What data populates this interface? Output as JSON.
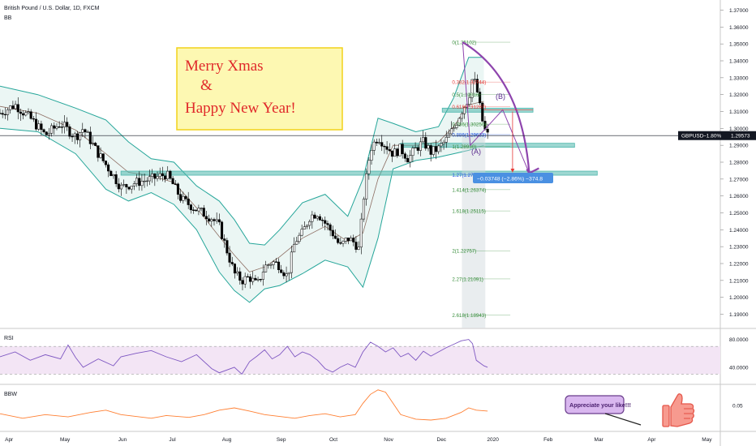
{
  "header": {
    "symbol_line": "British Pound / U.S. Dollar, 1D, FXCM",
    "indicator_bb": "BB"
  },
  "annotations": {
    "greeting_line1": "Merry Xmas",
    "greeting_amp": "&",
    "greeting_line2": "Happy New Year!",
    "wave_a": "(A)",
    "wave_b": "(B)",
    "measure_label": "−0.03748 (−2.86%) −374.8",
    "appreciate": "Appreciate your like!!!"
  },
  "price_tag": {
    "label": "GBPUSD",
    "change": "−1.80%",
    "value": "1.29573",
    "color": "#131722"
  },
  "colors": {
    "up": "#26a69a",
    "down": "#ef5350",
    "candle": "#000000",
    "bb_band": "#26a69a",
    "bb_fill": "#e6f4f1",
    "bb_basis": "#8d6e63",
    "rsi": "#7e57c2",
    "rsi_band": "#f3e5f5",
    "bbw": "#ff7f32",
    "fib": "#388e3c",
    "fib_red": "#e53935",
    "fib_blue": "#1e53e5",
    "zone": "#4db6ac",
    "arrow": "#8e44ad",
    "measure": "#4a90e2"
  },
  "chart_data": {
    "type": "candlestick",
    "y_axis": {
      "range": [
        1.184,
        1.376
      ],
      "ticks": [
        "1.37000",
        "1.36000",
        "1.35000",
        "1.34000",
        "1.33000",
        "1.32000",
        "1.31000",
        "1.30000",
        "1.29000",
        "1.28000",
        "1.27000",
        "1.26000",
        "1.25000",
        "1.24000",
        "1.23000",
        "1.22000",
        "1.21000",
        "1.20000",
        "1.19000"
      ]
    },
    "x_axis": {
      "ticks": [
        {
          "label": "Apr",
          "t": 0.012
        },
        {
          "label": "May",
          "t": 0.086
        },
        {
          "label": "Jun",
          "t": 0.162
        },
        {
          "label": "Jul",
          "t": 0.228
        },
        {
          "label": "Aug",
          "t": 0.3
        },
        {
          "label": "Sep",
          "t": 0.372
        },
        {
          "label": "Oct",
          "t": 0.441
        },
        {
          "label": "Nov",
          "t": 0.514
        },
        {
          "label": "Dec",
          "t": 0.584
        },
        {
          "label": "2020",
          "t": 0.652
        },
        {
          "label": "Feb",
          "t": 0.725
        },
        {
          "label": "Mar",
          "t": 0.792
        },
        {
          "label": "Apr",
          "t": 0.862
        },
        {
          "label": "May",
          "t": 0.935
        }
      ]
    },
    "close_path": [
      [
        0.0,
        1.309
      ],
      [
        0.02,
        1.314
      ],
      [
        0.04,
        1.306
      ],
      [
        0.06,
        1.296
      ],
      [
        0.08,
        1.303
      ],
      [
        0.1,
        1.295
      ],
      [
        0.11,
        1.3
      ],
      [
        0.13,
        1.285
      ],
      [
        0.15,
        1.272
      ],
      [
        0.16,
        1.265
      ],
      [
        0.18,
        1.268
      ],
      [
        0.2,
        1.27
      ],
      [
        0.22,
        1.273
      ],
      [
        0.23,
        1.266
      ],
      [
        0.24,
        1.258
      ],
      [
        0.26,
        1.252
      ],
      [
        0.28,
        1.247
      ],
      [
        0.29,
        1.242
      ],
      [
        0.3,
        1.228
      ],
      [
        0.31,
        1.214
      ],
      [
        0.32,
        1.21
      ],
      [
        0.33,
        1.212
      ],
      [
        0.34,
        1.207
      ],
      [
        0.35,
        1.218
      ],
      [
        0.36,
        1.221
      ],
      [
        0.37,
        1.219
      ],
      [
        0.38,
        1.212
      ],
      [
        0.39,
        1.233
      ],
      [
        0.4,
        1.238
      ],
      [
        0.41,
        1.248
      ],
      [
        0.42,
        1.25
      ],
      [
        0.43,
        1.244
      ],
      [
        0.44,
        1.238
      ],
      [
        0.45,
        1.23
      ],
      [
        0.46,
        1.235
      ],
      [
        0.47,
        1.232
      ],
      [
        0.475,
        1.228
      ],
      [
        0.48,
        1.256
      ],
      [
        0.49,
        1.288
      ],
      [
        0.5,
        1.295
      ],
      [
        0.51,
        1.29
      ],
      [
        0.52,
        1.285
      ],
      [
        0.53,
        1.288
      ],
      [
        0.54,
        1.282
      ],
      [
        0.55,
        1.288
      ],
      [
        0.56,
        1.292
      ],
      [
        0.57,
        1.286
      ],
      [
        0.58,
        1.288
      ],
      [
        0.59,
        1.293
      ],
      [
        0.6,
        1.3
      ],
      [
        0.61,
        1.31
      ],
      [
        0.62,
        1.318
      ],
      [
        0.625,
        1.33
      ],
      [
        0.63,
        1.325
      ],
      [
        0.635,
        1.312
      ],
      [
        0.64,
        1.3
      ],
      [
        0.645,
        1.296
      ]
    ],
    "bb_upper": [
      [
        0.0,
        1.325
      ],
      [
        0.05,
        1.32
      ],
      [
        0.1,
        1.312
      ],
      [
        0.14,
        1.305
      ],
      [
        0.17,
        1.292
      ],
      [
        0.2,
        1.282
      ],
      [
        0.23,
        1.28
      ],
      [
        0.26,
        1.266
      ],
      [
        0.29,
        1.257
      ],
      [
        0.31,
        1.246
      ],
      [
        0.33,
        1.232
      ],
      [
        0.35,
        1.231
      ],
      [
        0.37,
        1.24
      ],
      [
        0.4,
        1.256
      ],
      [
        0.43,
        1.261
      ],
      [
        0.46,
        1.248
      ],
      [
        0.48,
        1.27
      ],
      [
        0.5,
        1.306
      ],
      [
        0.52,
        1.303
      ],
      [
        0.55,
        1.298
      ],
      [
        0.58,
        1.301
      ],
      [
        0.6,
        1.318
      ],
      [
        0.62,
        1.342
      ],
      [
        0.64,
        1.342
      ]
    ],
    "bb_lower": [
      [
        0.0,
        1.3
      ],
      [
        0.05,
        1.298
      ],
      [
        0.1,
        1.285
      ],
      [
        0.14,
        1.264
      ],
      [
        0.17,
        1.257
      ],
      [
        0.2,
        1.262
      ],
      [
        0.23,
        1.255
      ],
      [
        0.26,
        1.24
      ],
      [
        0.29,
        1.215
      ],
      [
        0.31,
        1.204
      ],
      [
        0.33,
        1.197
      ],
      [
        0.35,
        1.205
      ],
      [
        0.37,
        1.207
      ],
      [
        0.4,
        1.214
      ],
      [
        0.43,
        1.222
      ],
      [
        0.46,
        1.218
      ],
      [
        0.48,
        1.206
      ],
      [
        0.5,
        1.235
      ],
      [
        0.52,
        1.276
      ],
      [
        0.55,
        1.281
      ],
      [
        0.58,
        1.283
      ],
      [
        0.6,
        1.285
      ],
      [
        0.62,
        1.287
      ],
      [
        0.64,
        1.29
      ]
    ],
    "bb_basis": [
      [
        0.0,
        1.313
      ],
      [
        0.05,
        1.309
      ],
      [
        0.1,
        1.299
      ],
      [
        0.14,
        1.285
      ],
      [
        0.17,
        1.274
      ],
      [
        0.2,
        1.272
      ],
      [
        0.23,
        1.268
      ],
      [
        0.26,
        1.253
      ],
      [
        0.29,
        1.236
      ],
      [
        0.31,
        1.225
      ],
      [
        0.33,
        1.215
      ],
      [
        0.35,
        1.218
      ],
      [
        0.37,
        1.224
      ],
      [
        0.4,
        1.235
      ],
      [
        0.43,
        1.242
      ],
      [
        0.46,
        1.233
      ],
      [
        0.48,
        1.238
      ],
      [
        0.5,
        1.27
      ],
      [
        0.52,
        1.29
      ],
      [
        0.55,
        1.29
      ],
      [
        0.58,
        1.292
      ],
      [
        0.6,
        1.301
      ],
      [
        0.62,
        1.314
      ],
      [
        0.64,
        1.316
      ]
    ],
    "fib_levels": [
      {
        "label": "0(1.35102)",
        "value": 1.35102,
        "color": "fib"
      },
      {
        "label": "0.382(1.32744)",
        "value": 1.32744,
        "color": "fib_red"
      },
      {
        "label": "0.5(1.32016)",
        "value": 1.32016,
        "color": "fib"
      },
      {
        "label": "0.618(1.31287)",
        "value": 1.31287,
        "color": "fib_red"
      },
      {
        "label": "0.786(1.30250)",
        "value": 1.3025,
        "color": "fib"
      },
      {
        "label": "0.886(1.29633)",
        "value": 1.29633,
        "color": "fib_blue"
      },
      {
        "label": "1(1.28930)",
        "value": 1.2893,
        "color": "fib"
      },
      {
        "label": "1.27(1.27263)",
        "value": 1.27263,
        "color": "fib_blue"
      },
      {
        "label": "1.414(1.26374)",
        "value": 1.26374,
        "color": "fib"
      },
      {
        "label": "1.618(1.25115)",
        "value": 1.25115,
        "color": "fib"
      },
      {
        "label": "2(1.22757)",
        "value": 1.22757,
        "color": "fib"
      },
      {
        "label": "2.27(1.21091)",
        "value": 1.21091,
        "color": "fib"
      },
      {
        "label": "2.618(1.18943)",
        "value": 1.18943,
        "color": "fib"
      }
    ],
    "zones": [
      {
        "value": 1.2735,
        "t_start": 0.16,
        "t_end": 0.79
      },
      {
        "value": 1.29,
        "t_start": 0.53,
        "t_end": 0.76
      },
      {
        "value": 1.3108,
        "t_start": 0.585,
        "t_end": 0.705
      }
    ],
    "rsi": {
      "label": "RSI",
      "ticks": [
        "80.0000",
        "40.0000"
      ],
      "range": [
        20,
        90
      ],
      "band": [
        30,
        70
      ],
      "series": [
        [
          0.0,
          55
        ],
        [
          0.02,
          62
        ],
        [
          0.04,
          50
        ],
        [
          0.06,
          58
        ],
        [
          0.08,
          52
        ],
        [
          0.09,
          72
        ],
        [
          0.1,
          54
        ],
        [
          0.11,
          40
        ],
        [
          0.13,
          52
        ],
        [
          0.15,
          42
        ],
        [
          0.16,
          55
        ],
        [
          0.18,
          60
        ],
        [
          0.2,
          64
        ],
        [
          0.22,
          55
        ],
        [
          0.24,
          48
        ],
        [
          0.26,
          58
        ],
        [
          0.28,
          38
        ],
        [
          0.29,
          32
        ],
        [
          0.31,
          40
        ],
        [
          0.32,
          30
        ],
        [
          0.33,
          48
        ],
        [
          0.34,
          56
        ],
        [
          0.35,
          65
        ],
        [
          0.36,
          52
        ],
        [
          0.37,
          58
        ],
        [
          0.38,
          70
        ],
        [
          0.39,
          55
        ],
        [
          0.4,
          62
        ],
        [
          0.41,
          58
        ],
        [
          0.42,
          50
        ],
        [
          0.43,
          38
        ],
        [
          0.44,
          33
        ],
        [
          0.45,
          40
        ],
        [
          0.46,
          45
        ],
        [
          0.47,
          40
        ],
        [
          0.48,
          62
        ],
        [
          0.49,
          76
        ],
        [
          0.5,
          70
        ],
        [
          0.51,
          62
        ],
        [
          0.52,
          68
        ],
        [
          0.53,
          55
        ],
        [
          0.54,
          60
        ],
        [
          0.55,
          50
        ],
        [
          0.56,
          63
        ],
        [
          0.57,
          56
        ],
        [
          0.58,
          62
        ],
        [
          0.59,
          68
        ],
        [
          0.6,
          73
        ],
        [
          0.61,
          78
        ],
        [
          0.62,
          80
        ],
        [
          0.625,
          74
        ],
        [
          0.63,
          50
        ],
        [
          0.64,
          42
        ],
        [
          0.645,
          40
        ]
      ]
    },
    "bbw": {
      "label": "BBW",
      "ticks": [
        "0.05"
      ],
      "range": [
        0,
        0.09
      ],
      "series": [
        [
          0.0,
          0.032
        ],
        [
          0.03,
          0.022
        ],
        [
          0.06,
          0.03
        ],
        [
          0.09,
          0.025
        ],
        [
          0.12,
          0.035
        ],
        [
          0.14,
          0.04
        ],
        [
          0.16,
          0.03
        ],
        [
          0.18,
          0.026
        ],
        [
          0.2,
          0.022
        ],
        [
          0.22,
          0.028
        ],
        [
          0.25,
          0.024
        ],
        [
          0.27,
          0.03
        ],
        [
          0.29,
          0.04
        ],
        [
          0.31,
          0.045
        ],
        [
          0.33,
          0.038
        ],
        [
          0.35,
          0.03
        ],
        [
          0.37,
          0.026
        ],
        [
          0.39,
          0.022
        ],
        [
          0.41,
          0.028
        ],
        [
          0.43,
          0.032
        ],
        [
          0.45,
          0.025
        ],
        [
          0.47,
          0.03
        ],
        [
          0.48,
          0.055
        ],
        [
          0.49,
          0.075
        ],
        [
          0.5,
          0.085
        ],
        [
          0.51,
          0.08
        ],
        [
          0.52,
          0.055
        ],
        [
          0.53,
          0.03
        ],
        [
          0.55,
          0.02
        ],
        [
          0.57,
          0.018
        ],
        [
          0.59,
          0.022
        ],
        [
          0.61,
          0.035
        ],
        [
          0.62,
          0.045
        ],
        [
          0.63,
          0.04
        ],
        [
          0.645,
          0.038
        ]
      ]
    }
  }
}
